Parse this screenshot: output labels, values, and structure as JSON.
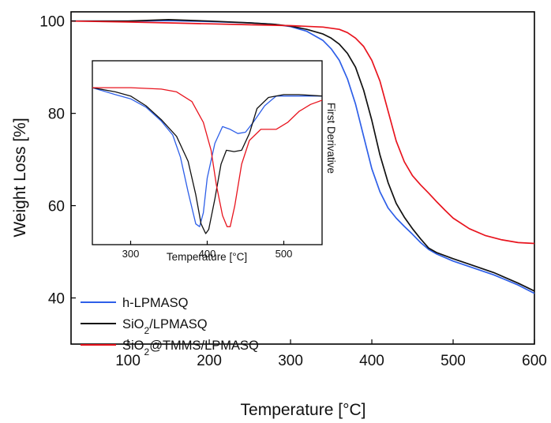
{
  "chart_data": [
    {
      "type": "line",
      "title": "",
      "xlabel": "Temperature [°C]",
      "ylabel": "Weight Loss [%]",
      "xlim": [
        30,
        600
      ],
      "ylim": [
        30,
        102
      ],
      "xticks": [
        100,
        200,
        300,
        400,
        500,
        600
      ],
      "yticks": [
        40,
        60,
        80,
        100
      ],
      "legend_position": "bottom-left",
      "series": [
        {
          "name": "h-LPMASQ",
          "color": "#2e5fe8",
          "x": [
            30,
            100,
            150,
            200,
            250,
            280,
            300,
            320,
            340,
            350,
            360,
            370,
            380,
            390,
            400,
            410,
            420,
            430,
            440,
            450,
            460,
            470,
            480,
            500,
            520,
            550,
            580,
            600
          ],
          "y": [
            100.0,
            100.0,
            100.1,
            99.9,
            99.6,
            99.3,
            98.8,
            97.8,
            95.8,
            94.0,
            91.5,
            87.5,
            82.0,
            75.0,
            68.0,
            63.0,
            59.5,
            57.3,
            55.5,
            53.8,
            52.0,
            50.5,
            49.5,
            48.0,
            46.8,
            45.0,
            42.8,
            41.0
          ]
        },
        {
          "name": "SiO2/LPMASQ",
          "color": "#111111",
          "x": [
            30,
            100,
            150,
            200,
            250,
            280,
            300,
            320,
            340,
            350,
            360,
            370,
            380,
            390,
            400,
            410,
            420,
            430,
            440,
            450,
            460,
            470,
            480,
            500,
            520,
            550,
            580,
            600
          ],
          "y": [
            100.0,
            100.0,
            100.3,
            100.0,
            99.6,
            99.3,
            98.9,
            98.2,
            97.2,
            96.3,
            95.0,
            93.0,
            90.0,
            85.0,
            78.5,
            71.0,
            65.0,
            60.5,
            57.5,
            55.0,
            52.8,
            50.8,
            49.8,
            48.5,
            47.3,
            45.5,
            43.2,
            41.5
          ]
        },
        {
          "name": "SiO2@TMMS/LPMASQ",
          "color": "#e8141e",
          "x": [
            30,
            100,
            150,
            200,
            250,
            300,
            340,
            360,
            370,
            380,
            390,
            400,
            410,
            420,
            430,
            440,
            450,
            460,
            470,
            480,
            490,
            500,
            520,
            540,
            560,
            580,
            600
          ],
          "y": [
            100.0,
            99.8,
            99.6,
            99.4,
            99.2,
            99.0,
            98.7,
            98.2,
            97.5,
            96.3,
            94.5,
            91.5,
            87.0,
            80.5,
            74.0,
            69.5,
            66.5,
            64.5,
            62.7,
            60.8,
            59.0,
            57.3,
            55.0,
            53.5,
            52.6,
            52.0,
            51.8
          ]
        }
      ]
    },
    {
      "type": "line",
      "title": "",
      "xlabel": "Temperature [°C]",
      "ylabel": "First Derivative",
      "xlim": [
        250,
        550
      ],
      "ylim": [
        -1.05,
        0.12
      ],
      "xticks": [
        300,
        400,
        500
      ],
      "grid": false,
      "series": [
        {
          "name": "h-LPMASQ",
          "color": "#2e5fe8",
          "x": [
            250,
            280,
            300,
            320,
            340,
            355,
            365,
            375,
            385,
            390,
            395,
            400,
            410,
            420,
            430,
            440,
            450,
            460,
            475,
            490,
            500,
            520,
            550
          ],
          "y": [
            0.0,
            -0.05,
            -0.08,
            -0.14,
            -0.24,
            -0.34,
            -0.5,
            -0.75,
            -0.98,
            -1.0,
            -0.9,
            -0.65,
            -0.4,
            -0.28,
            -0.3,
            -0.33,
            -0.32,
            -0.25,
            -0.13,
            -0.06,
            -0.06,
            -0.06,
            -0.06
          ]
        },
        {
          "name": "SiO2/LPMASQ",
          "color": "#111111",
          "x": [
            250,
            280,
            300,
            320,
            340,
            360,
            375,
            385,
            392,
            398,
            402,
            410,
            418,
            425,
            435,
            445,
            455,
            465,
            480,
            500,
            520,
            550
          ],
          "y": [
            0.0,
            -0.03,
            -0.06,
            -0.13,
            -0.23,
            -0.35,
            -0.53,
            -0.77,
            -0.98,
            -1.05,
            -1.02,
            -0.8,
            -0.55,
            -0.45,
            -0.46,
            -0.45,
            -0.33,
            -0.15,
            -0.07,
            -0.05,
            -0.05,
            -0.06
          ]
        },
        {
          "name": "SiO2@TMMS/LPMASQ",
          "color": "#e8141e",
          "x": [
            250,
            300,
            340,
            360,
            380,
            395,
            405,
            412,
            420,
            426,
            430,
            436,
            445,
            455,
            470,
            490,
            505,
            520,
            535,
            550
          ],
          "y": [
            0.0,
            0.0,
            -0.01,
            -0.03,
            -0.1,
            -0.25,
            -0.45,
            -0.7,
            -0.92,
            -1.0,
            -1.0,
            -0.85,
            -0.55,
            -0.38,
            -0.3,
            -0.3,
            -0.25,
            -0.17,
            -0.12,
            -0.09
          ]
        }
      ]
    }
  ]
}
